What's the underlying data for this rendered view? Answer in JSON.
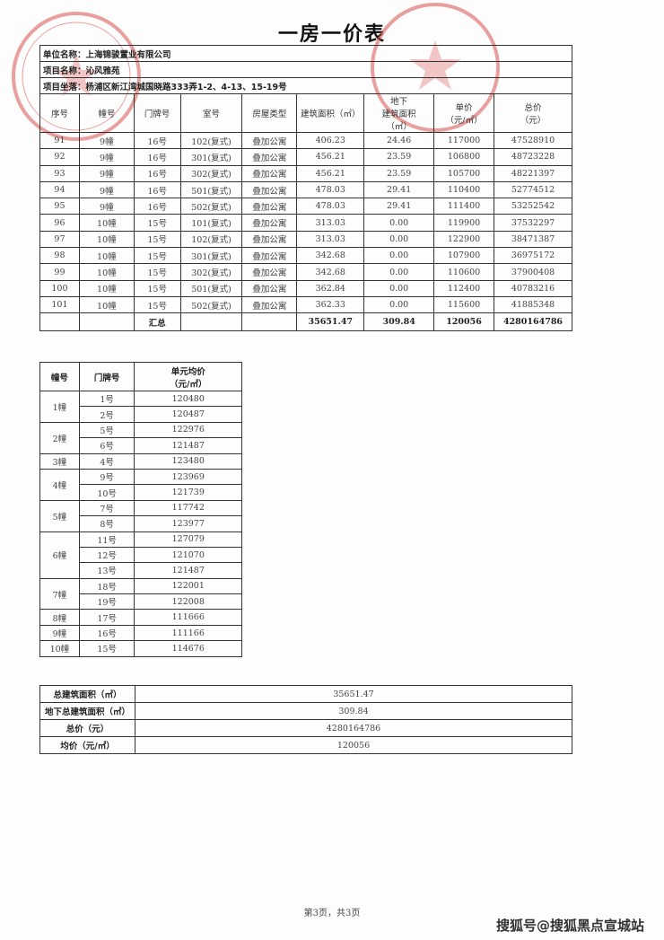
{
  "title": "一房一价表",
  "info": {
    "company": "单位名称：上海锦骏置业有限公司",
    "project": "项目名称：沁风雅苑",
    "location": "项目坐落：杨浦区新江湾城国晓路333弄1-2、4-13、15-19号"
  },
  "main_table": {
    "headers": [
      "序号",
      "幢号",
      "门牌号",
      "室号",
      "房屋类型",
      "建筑面积（㎡）",
      "地下\n建筑面积\n（㎡）",
      "单价\n（元/㎡）",
      "总价\n（元）"
    ],
    "rows": [
      [
        "91",
        "9幢",
        "16号",
        "102(复式)",
        "叠加公寓",
        "406.23",
        "24.46",
        "117000",
        "47528910"
      ],
      [
        "92",
        "9幢",
        "16号",
        "301(复式)",
        "叠加公寓",
        "456.21",
        "23.59",
        "106800",
        "48723228"
      ],
      [
        "93",
        "9幢",
        "16号",
        "302(复式)",
        "叠加公寓",
        "456.21",
        "23.59",
        "105700",
        "48221397"
      ],
      [
        "94",
        "9幢",
        "16号",
        "501(复式)",
        "叠加公寓",
        "478.03",
        "29.41",
        "110400",
        "52774512"
      ],
      [
        "95",
        "9幢",
        "16号",
        "502(复式)",
        "叠加公寓",
        "478.03",
        "29.41",
        "111400",
        "53252542"
      ],
      [
        "96",
        "10幢",
        "15号",
        "101(复式)",
        "叠加公寓",
        "313.03",
        "0.00",
        "119900",
        "37532297"
      ],
      [
        "97",
        "10幢",
        "15号",
        "102(复式)",
        "叠加公寓",
        "313.03",
        "0.00",
        "122900",
        "38471387"
      ],
      [
        "98",
        "10幢",
        "15号",
        "301(复式)",
        "叠加公寓",
        "342.68",
        "0.00",
        "107900",
        "36975172"
      ],
      [
        "99",
        "10幢",
        "15号",
        "302(复式)",
        "叠加公寓",
        "342.68",
        "0.00",
        "110600",
        "37900408"
      ],
      [
        "100",
        "10幢",
        "15号",
        "501(复式)",
        "叠加公寓",
        "362.84",
        "0.00",
        "112400",
        "40783216"
      ],
      [
        "101",
        "10幢",
        "15号",
        "502(复式)",
        "叠加公寓",
        "362.33",
        "0.00",
        "115600",
        "41885348"
      ]
    ],
    "total": [
      "",
      "",
      "汇总",
      "",
      "",
      "35651.47",
      "309.84",
      "120056",
      "4280164786"
    ]
  },
  "unit_table": {
    "headers": [
      "幢号",
      "门牌号",
      "单元均价\n（元/㎡）"
    ],
    "groups": [
      {
        "building": "1幢",
        "units": [
          [
            "1号",
            "120480"
          ],
          [
            "2号",
            "120487"
          ]
        ]
      },
      {
        "building": "2幢",
        "units": [
          [
            "5号",
            "122976"
          ],
          [
            "6号",
            "121487"
          ]
        ]
      },
      {
        "building": "3幢",
        "units": [
          [
            "4号",
            "123480"
          ]
        ]
      },
      {
        "building": "4幢",
        "units": [
          [
            "9号",
            "123969"
          ],
          [
            "10号",
            "121739"
          ]
        ]
      },
      {
        "building": "5幢",
        "units": [
          [
            "7号",
            "117742"
          ],
          [
            "8号",
            "123977"
          ]
        ]
      },
      {
        "building": "6幢",
        "units": [
          [
            "11号",
            "127079"
          ],
          [
            "12号",
            "121070"
          ],
          [
            "13号",
            "121487"
          ]
        ]
      },
      {
        "building": "7幢",
        "units": [
          [
            "18号",
            "122001"
          ],
          [
            "19号",
            "122008"
          ]
        ]
      },
      {
        "building": "8幢",
        "units": [
          [
            "17号",
            "111666"
          ]
        ]
      },
      {
        "building": "9幢",
        "units": [
          [
            "16号",
            "111166"
          ]
        ]
      },
      {
        "building": "10幢",
        "units": [
          [
            "15号",
            "114676"
          ]
        ]
      }
    ]
  },
  "summary": [
    {
      "label": "总建筑面积（㎡）",
      "value": "35651.47"
    },
    {
      "label": "地下总建筑面积（㎡）",
      "value": "309.84"
    },
    {
      "label": "总价（元）",
      "value": "4280164786"
    },
    {
      "label": "均价（元/㎡）",
      "value": "120056"
    }
  ],
  "footer": "第3页，共3页",
  "watermark": "搜狐号@搜狐黑点宣城站",
  "stamps": {
    "left": "SHIN JUN REALTY",
    "color": "#d9534f"
  }
}
